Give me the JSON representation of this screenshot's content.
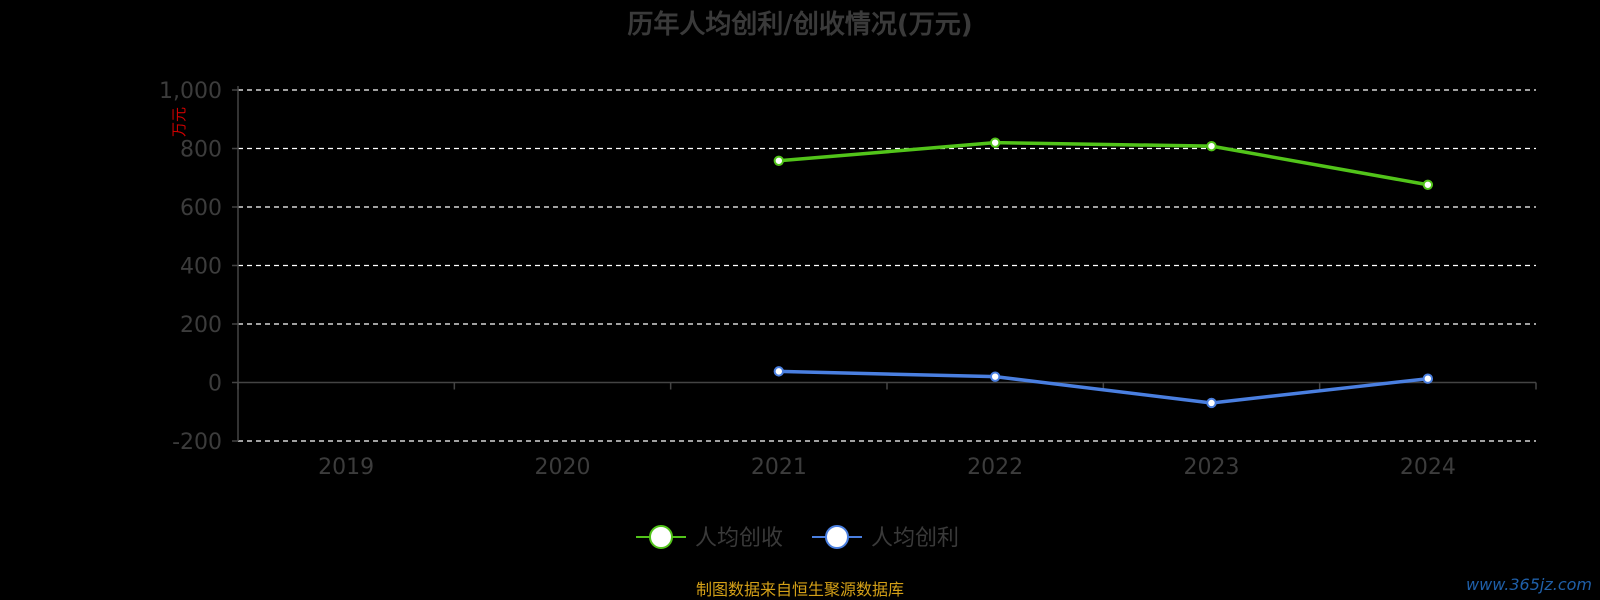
{
  "chart_data": {
    "type": "line",
    "title": "历年人均创利/创收情况(万元)",
    "ylabel": "万元",
    "ylim": [
      -200,
      1000
    ],
    "yticks": [
      -200,
      0,
      200,
      400,
      600,
      800,
      1000
    ],
    "ytick_labels": [
      "-200",
      "0",
      "200",
      "400",
      "600",
      "800",
      "1,000"
    ],
    "categories": [
      "2019",
      "2020",
      "2021",
      "2022",
      "2023",
      "2024"
    ],
    "grid": true,
    "legend_position": "bottom",
    "series": [
      {
        "name": "人均创收",
        "color": "#52c41a",
        "values": [
          null,
          null,
          758,
          820,
          808,
          676
        ]
      },
      {
        "name": "人均创利",
        "color": "#4a7fe0",
        "values": [
          null,
          null,
          38,
          20,
          -70,
          13
        ]
      }
    ]
  },
  "footer": {
    "source": "制图数据来自恒生聚源数据库",
    "watermark": "www.365jz.com"
  },
  "colors": {
    "background": "#000000",
    "axis": "#444444",
    "grid": "#ffffff",
    "unit": "#cc0000",
    "source": "#d4a017"
  }
}
